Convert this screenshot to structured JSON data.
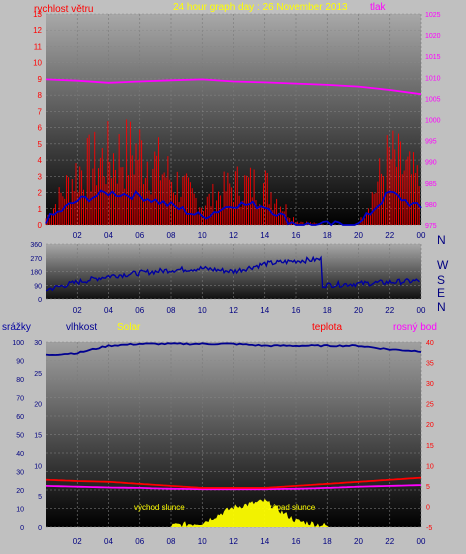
{
  "title": "24 hour graph day : 26 November 2013",
  "x_ticks": [
    "02",
    "04",
    "06",
    "08",
    "10",
    "12",
    "14",
    "16",
    "18",
    "20",
    "22",
    "00"
  ],
  "colors": {
    "wind": "#ff0000",
    "gust_fill": "#ff0000",
    "avg": "#0000c8",
    "pressure": "#ff00ff",
    "direction": "#0000a0",
    "humidity": "#000090",
    "temp": "#ff0000",
    "dew": "#ff00ff",
    "solar": "#ffff00"
  },
  "chart_data": [
    {
      "type": "line",
      "title": "24 hour graph day : 26 November 2013",
      "series": [
        {
          "name": "rychlost větru",
          "axis": "left"
        },
        {
          "name": "tlak",
          "axis": "right"
        }
      ],
      "left_label": "rychlost větru",
      "right_label": "tlak",
      "left_ticks": [
        "0",
        "1",
        "2",
        "3",
        "4",
        "5",
        "6",
        "7",
        "8",
        "9",
        "10",
        "11",
        "12",
        "13"
      ],
      "right_ticks": [
        "975",
        "980",
        "985",
        "990",
        "995",
        "1000",
        "1005",
        "1010",
        "1015",
        "1020",
        "1025"
      ],
      "ylim_left": [
        0,
        13
      ],
      "ylim_right": [
        975,
        1025
      ],
      "x": [
        0,
        2,
        4,
        6,
        8,
        10,
        12,
        14,
        16,
        18,
        20,
        22,
        24
      ],
      "wind_gust": [
        0.5,
        4,
        5,
        5.5,
        3.5,
        1.5,
        3,
        3,
        0.3,
        0,
        0,
        5,
        3
      ],
      "wind_avg": [
        0.3,
        1.5,
        2,
        1.8,
        1.2,
        0.5,
        1.3,
        1.2,
        0,
        0,
        0,
        2,
        1
      ],
      "pressure": [
        1009.5,
        1009.2,
        1008.7,
        1009,
        1009.3,
        1009.5,
        1009,
        1008.8,
        1008.5,
        1008.2,
        1007.8,
        1007,
        1006
      ]
    },
    {
      "type": "scatter",
      "left_ticks": [
        "0",
        "90",
        "180",
        "270",
        "360"
      ],
      "right_ticks": [
        "N",
        "W",
        "S",
        "E",
        "N"
      ],
      "ylim": [
        0,
        360
      ],
      "x": [
        0,
        2,
        4,
        6,
        8,
        10,
        12,
        14,
        16,
        17.6,
        17.6,
        20,
        22,
        24
      ],
      "direction": [
        60,
        110,
        150,
        170,
        190,
        200,
        180,
        230,
        250,
        260,
        90,
        100,
        110,
        120
      ]
    },
    {
      "type": "line",
      "labels": {
        "rain": "srážky",
        "humidity": "vlhkost",
        "solar": "Solar",
        "temp": "teplota",
        "dew": "rosný bod"
      },
      "left_ticks": [
        "0",
        "10",
        "20",
        "30",
        "40",
        "50",
        "60",
        "70",
        "80",
        "90",
        "100"
      ],
      "mid_ticks": [
        "0",
        "5",
        "10",
        "15",
        "20",
        "25",
        "30"
      ],
      "right_ticks": [
        "-5",
        "0",
        "5",
        "10",
        "15",
        "20",
        "25",
        "30",
        "35",
        "40"
      ],
      "humidity_ylim": [
        0,
        100
      ],
      "temp_ylim": [
        -5,
        40
      ],
      "x": [
        0,
        2,
        4,
        6,
        8,
        10,
        12,
        14,
        16,
        18,
        20,
        22,
        24
      ],
      "humidity": [
        93,
        94,
        98,
        99,
        99,
        99,
        99,
        98,
        98,
        98,
        98,
        96,
        95
      ],
      "temp": [
        6.5,
        6.2,
        6,
        5.5,
        5,
        4.5,
        4.5,
        4.5,
        5,
        5.5,
        6,
        6.5,
        7
      ],
      "dew": [
        5,
        4.8,
        4.6,
        4.5,
        4.3,
        4.2,
        4.2,
        4.2,
        4.3,
        4.5,
        4.8,
        5,
        5.2
      ],
      "solar": [
        0,
        0,
        0,
        0,
        0,
        0.5,
        3,
        4,
        0.8,
        0,
        0,
        0,
        0
      ],
      "annotations": {
        "sunrise": "východ slunce",
        "sunset": "západ slunce"
      }
    }
  ]
}
